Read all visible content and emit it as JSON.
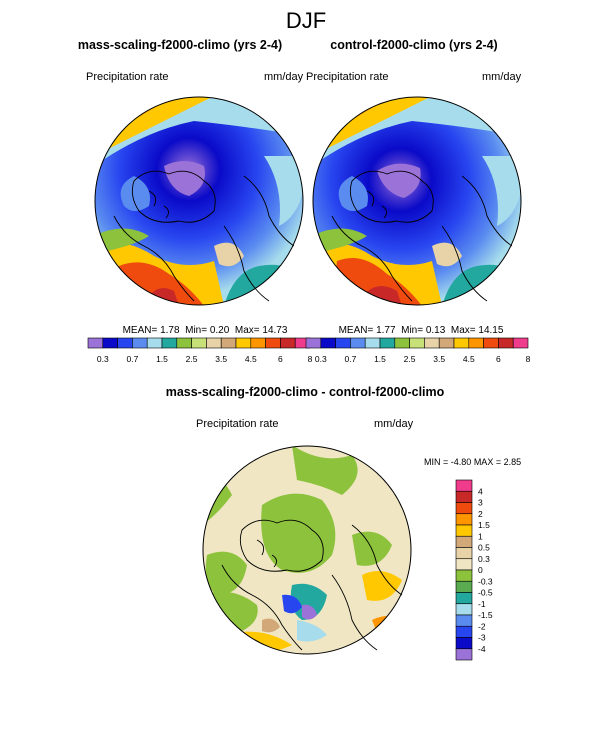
{
  "page_title": "DJF",
  "colors": {
    "palette_abs": [
      "#9B72D8",
      "#0A0AC8",
      "#2846F0",
      "#5A8CF0",
      "#A6DCEC",
      "#23A8A0",
      "#8CC23C",
      "#C8E078",
      "#E8D2A8",
      "#D2A878",
      "#FFC800",
      "#FF9600",
      "#F04B0F",
      "#C82828",
      "#F03C8C"
    ],
    "palette_diff": [
      "#9B72D8",
      "#0A0AC8",
      "#2846F0",
      "#5A8CF0",
      "#A6DCEC",
      "#23A8A0",
      "#5AAA50",
      "#8CC23C",
      "#F0E6C3",
      "#E8D2A8",
      "#D2A878",
      "#FFC800",
      "#FF9600",
      "#F04B0F",
      "#C82828",
      "#F03C8C"
    ],
    "coast": "#000000"
  },
  "panels": [
    {
      "title": "mass-scaling-f2000-climo (yrs 2-4)",
      "variable": "Precipitation rate",
      "units": "mm/day",
      "stats": {
        "mean_label": "MEAN=",
        "mean": "1.78",
        "min_label": "Min=",
        "min": "0.20",
        "max_label": "Max=",
        "max": "14.73"
      }
    },
    {
      "title": "control-f2000-climo (yrs 2-4)",
      "variable": "Precipitation rate",
      "units": "mm/day",
      "stats": {
        "mean_label": "MEAN=",
        "mean": "1.77",
        "min_label": "Min=",
        "min": "0.13",
        "max_label": "Max=",
        "max": "14.15"
      }
    },
    {
      "title": "mass-scaling-f2000-climo - control-f2000-climo",
      "variable": "Precipitation rate",
      "units": "mm/day",
      "stats": {
        "min_label": "MIN =",
        "min": "-4.80",
        "max_label": "MAX =",
        "max": "2.85"
      }
    }
  ],
  "chart_data": [
    {
      "type": "heatmap",
      "projection": "north-polar-stereographic",
      "title": "mass-scaling-f2000-climo (yrs 2-4)",
      "variable": "Precipitation rate",
      "units": "mm/day",
      "colorbar_levels": [
        0.3,
        0.7,
        1.5,
        2.5,
        3.5,
        4.5,
        6,
        8
      ],
      "colorbar_ticks": [
        "0.3",
        "0.7",
        "1.5",
        "2.5",
        "3.5",
        "4.5",
        "6",
        "8"
      ],
      "mean": 1.78,
      "min": 0.2,
      "max": 14.73
    },
    {
      "type": "heatmap",
      "projection": "north-polar-stereographic",
      "title": "control-f2000-climo (yrs 2-4)",
      "variable": "Precipitation rate",
      "units": "mm/day",
      "colorbar_levels": [
        0.3,
        0.7,
        1.5,
        2.5,
        3.5,
        4.5,
        6,
        8
      ],
      "colorbar_ticks": [
        "0.3",
        "0.7",
        "1.5",
        "2.5",
        "3.5",
        "4.5",
        "6",
        "8"
      ],
      "mean": 1.77,
      "min": 0.13,
      "max": 14.15
    },
    {
      "type": "heatmap",
      "projection": "north-polar-stereographic",
      "title": "mass-scaling-f2000-climo - control-f2000-climo",
      "variable": "Precipitation rate",
      "units": "mm/day",
      "colorbar_levels": [
        -4,
        -3,
        -2,
        -1.5,
        -1,
        -0.5,
        -0.3,
        0,
        0.3,
        0.5,
        1,
        1.5,
        2,
        3,
        4
      ],
      "colorbar_ticks": [
        "4",
        "3",
        "2",
        "1.5",
        "1",
        "0.5",
        "0.3",
        "0",
        "-0.3",
        "-0.5",
        "-1",
        "-1.5",
        "-2",
        "-3",
        "-4"
      ],
      "min": -4.8,
      "max": 2.85
    }
  ]
}
